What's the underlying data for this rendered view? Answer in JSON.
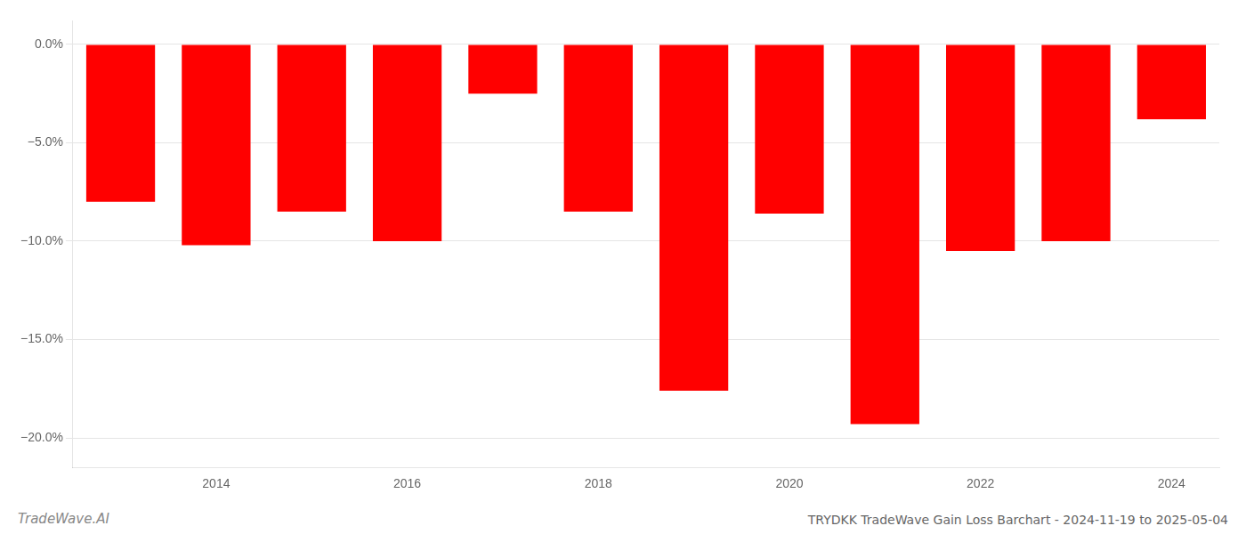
{
  "chart_data": {
    "type": "bar",
    "title": "TRYDKK TradeWave Gain Loss Barchart - 2024-11-19 to 2025-05-04",
    "annotations": [
      "TradeWave.AI"
    ],
    "categories": [
      null,
      "2014",
      null,
      "2016",
      null,
      "2018",
      null,
      "2020",
      null,
      "2022",
      null,
      "2024"
    ],
    "values": [
      -8.0,
      -10.2,
      -8.5,
      -10.0,
      -2.5,
      -8.5,
      -17.6,
      -8.6,
      -19.3,
      -10.5,
      -10.0,
      -3.8
    ],
    "color": "#ff0000",
    "ylim": [
      -21.5,
      1.2
    ],
    "yticks": [
      {
        "value": 0.0,
        "label": "0.0%"
      },
      {
        "value": -5.0,
        "label": "−5.0%"
      },
      {
        "value": -10.0,
        "label": "−10.0%"
      },
      {
        "value": -15.0,
        "label": "−15.0%"
      },
      {
        "value": -20.0,
        "label": "−20.0%"
      }
    ],
    "grid": true
  }
}
